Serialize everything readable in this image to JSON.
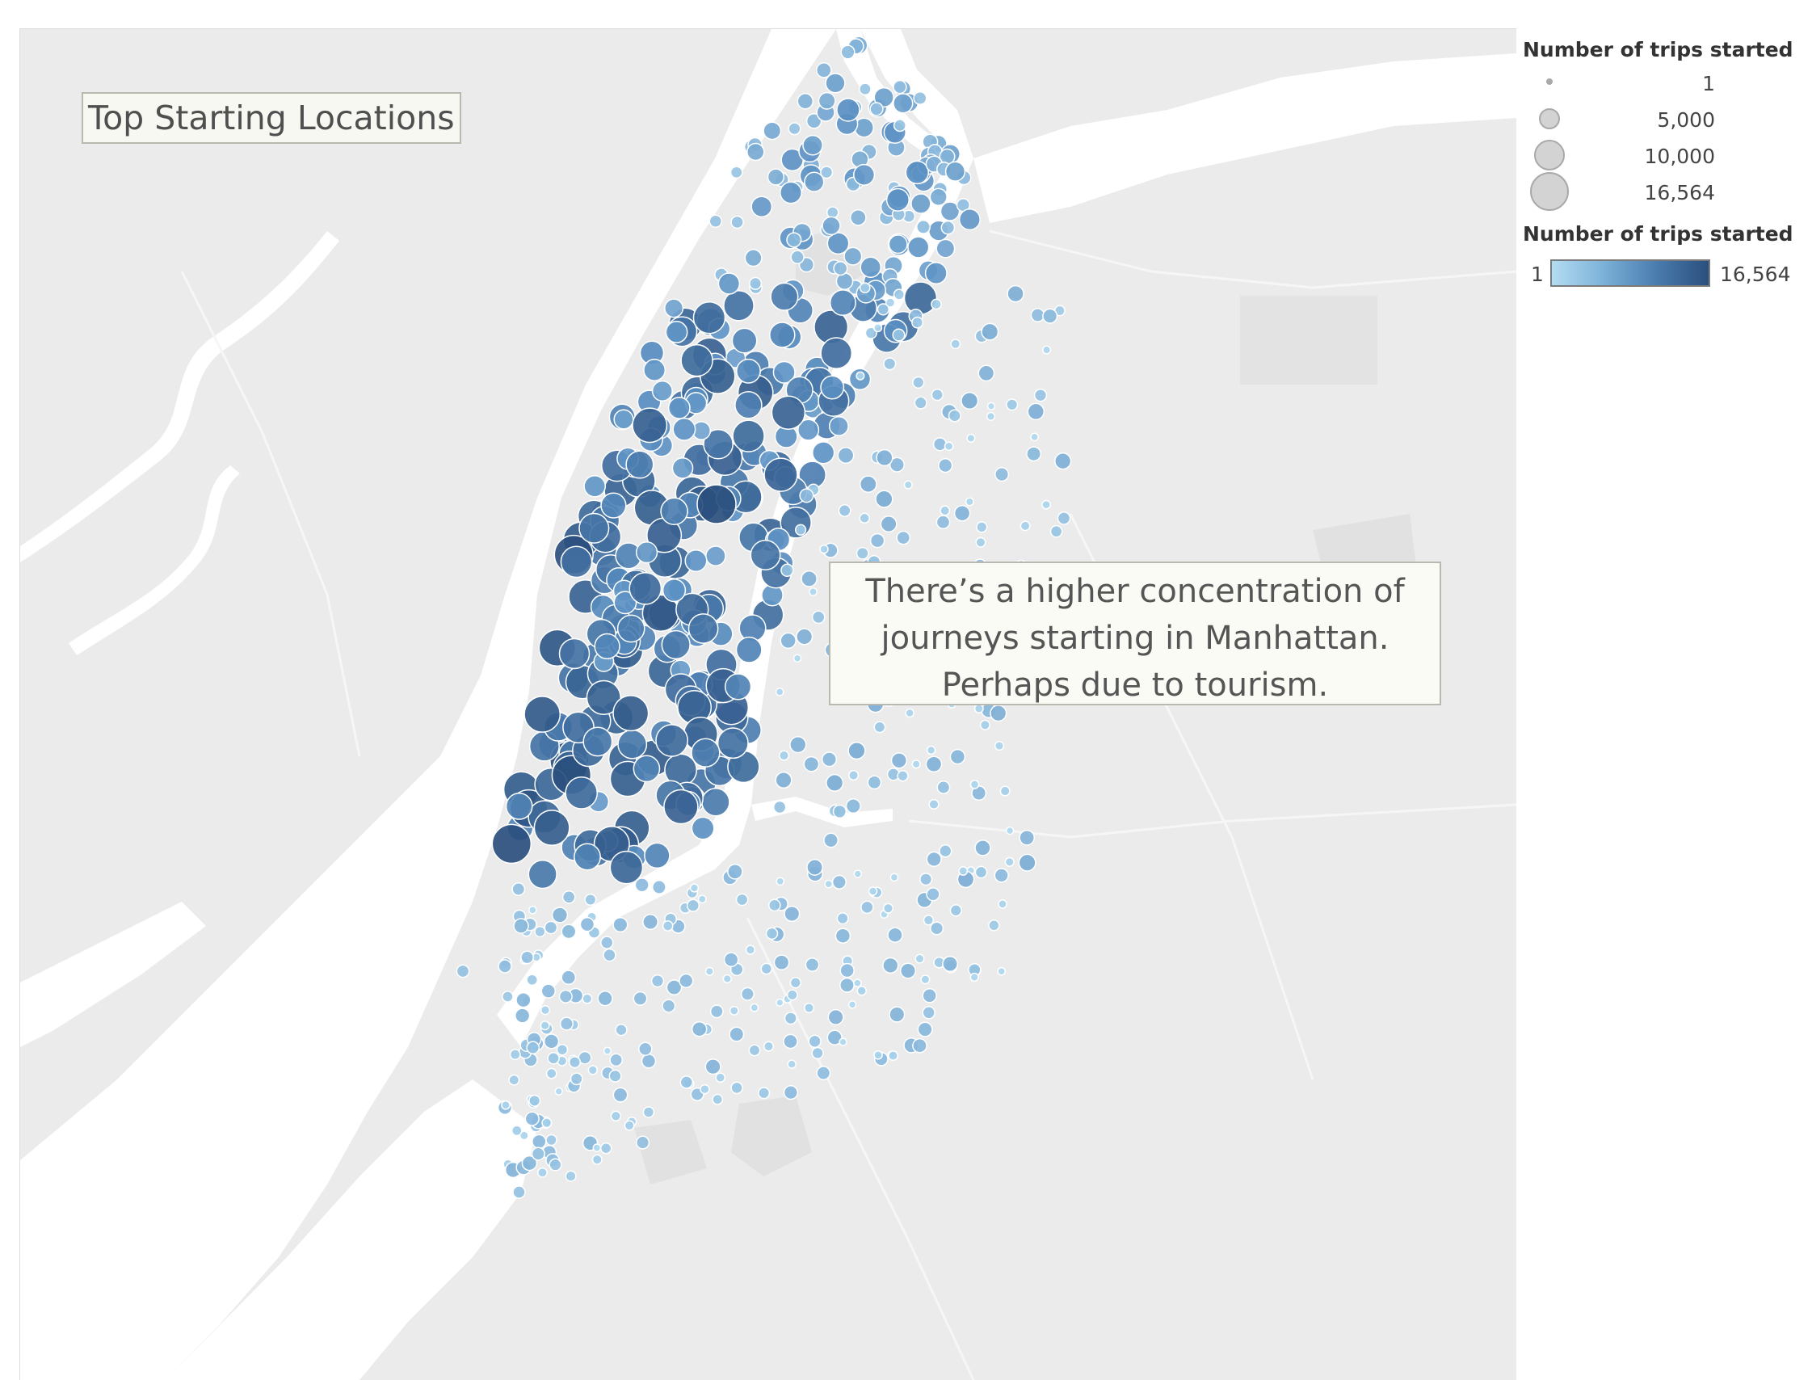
{
  "map": {
    "title": "Top Starting Locations",
    "annotation_lines": [
      "There’s a higher concentration of",
      "journeys starting in Manhattan.",
      "Perhaps due to tourism."
    ],
    "colors": {
      "land": "#ebebeb",
      "water": "#ffffff",
      "park": "#e2e2e2",
      "low": "#b3dcf2",
      "high": "#2a4f7e"
    }
  },
  "legend": {
    "size_title": "Number of trips started",
    "size_items": [
      {
        "label": "1",
        "value": 1
      },
      {
        "label": "5,000",
        "value": 5000
      },
      {
        "label": "10,000",
        "value": 10000
      },
      {
        "label": "16,564",
        "value": 16564
      }
    ],
    "color_title": "Number of trips started",
    "color_min": "1",
    "color_max": "16,564"
  }
}
